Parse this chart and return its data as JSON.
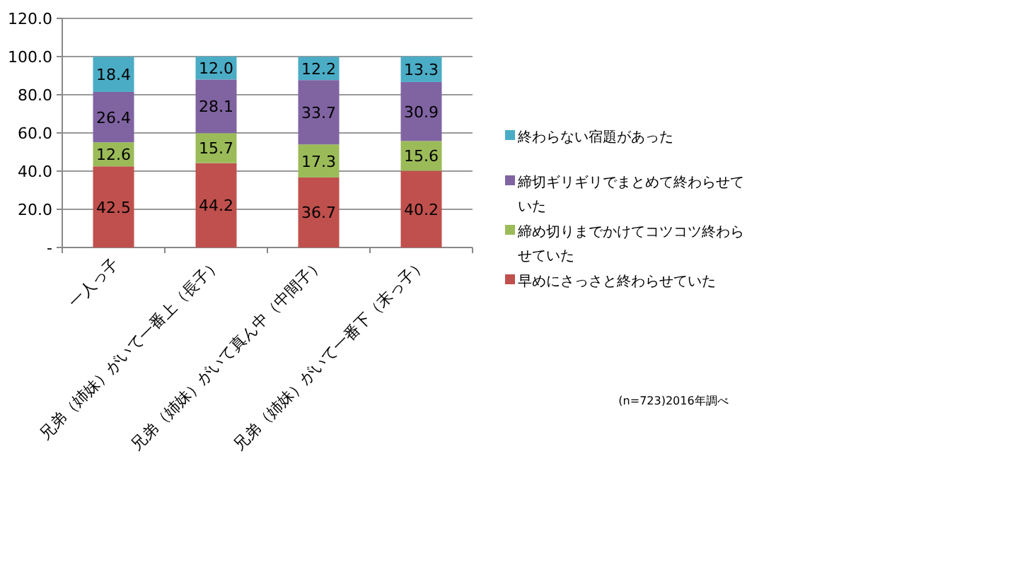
{
  "chart_data": {
    "type": "bar",
    "stacked": true,
    "categories": [
      "一人っ子",
      "兄弟（姉妹）がいて一番上（長子）",
      "兄弟（姉妹）がいて真ん中（中間子）",
      "兄弟（姉妹）がいて一番下（末っ子）"
    ],
    "series": [
      {
        "name": "早めにさっさと終わらせていた",
        "color": "#c0504d",
        "values": [
          42.5,
          44.2,
          36.7,
          40.2
        ],
        "value_labels": [
          "42.5",
          "44.2",
          "36.7",
          "40.2"
        ]
      },
      {
        "name": "締め切りまでかけてコツコツ終わらせていた",
        "color": "#9bbb59",
        "values": [
          12.6,
          15.7,
          17.3,
          15.6
        ],
        "value_labels": [
          "12.6",
          "15.7",
          "17.3",
          "15.6"
        ]
      },
      {
        "name": "締切ギリギリでまとめて終わらせていた",
        "color": "#8064a2",
        "values": [
          26.4,
          28.1,
          33.7,
          30.9
        ],
        "value_labels": [
          "26.4",
          "28.1",
          "33.7",
          "30.9"
        ]
      },
      {
        "name": "終わらない宿題があった",
        "color": "#4bacc6",
        "values": [
          18.4,
          12.0,
          12.2,
          13.3
        ],
        "value_labels": [
          "18.4",
          "12.0",
          "12.2",
          "13.3"
        ]
      }
    ],
    "ylim": [
      0,
      120
    ],
    "yticks": [
      {
        "value": 0,
        "label": "-"
      },
      {
        "value": 20,
        "label": "20.0"
      },
      {
        "value": 40,
        "label": "40.0"
      },
      {
        "value": 60,
        "label": "60.0"
      },
      {
        "value": 80,
        "label": "80.0"
      },
      {
        "value": 100,
        "label": "100.0"
      },
      {
        "value": 120,
        "label": "120.0"
      }
    ],
    "grid": "y",
    "legend": "right",
    "annotations": [
      "(n=723)2016年調べ"
    ]
  }
}
